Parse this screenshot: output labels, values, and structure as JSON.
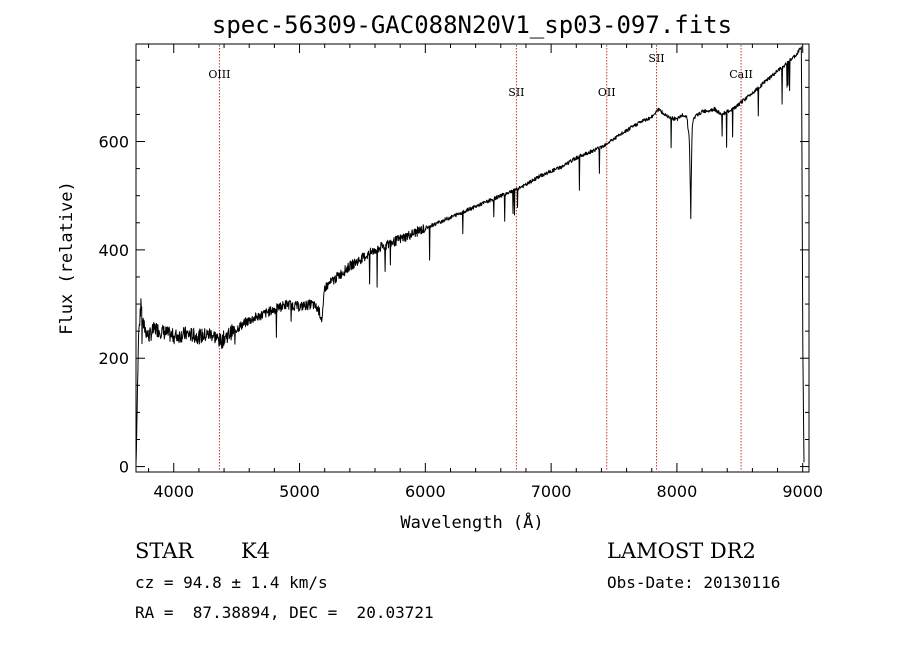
{
  "chart_data": {
    "type": "line",
    "title": "spec-56309-GAC088N20V1_sp03-097.fits",
    "xlabel": "Wavelength (Å)",
    "ylabel": "Flux (relative)",
    "xlim": [
      3700,
      9050
    ],
    "ylim": [
      -10,
      780
    ],
    "x_ticks": [
      4000,
      5000,
      6000,
      7000,
      8000,
      9000
    ],
    "y_ticks": [
      0,
      200,
      400,
      600
    ],
    "x_tick_labels": [
      "4000",
      "5000",
      "6000",
      "7000",
      "8000",
      "9000"
    ],
    "y_tick_labels": [
      "0",
      "200",
      "400",
      "600"
    ],
    "grid": false,
    "series": [
      {
        "x": [
          3700,
          3720,
          3740,
          3760,
          3780,
          3800,
          3850,
          3900,
          3950,
          4000,
          4100,
          4200,
          4300,
          4380,
          4400,
          4500,
          4600,
          4700,
          4800,
          4900,
          5000,
          5100,
          5150,
          5180,
          5200,
          5300,
          5400,
          5500,
          5600,
          5700,
          5800,
          5900,
          6000,
          6100,
          6200,
          6300,
          6400,
          6500,
          6600,
          6700,
          6800,
          6900,
          7000,
          7100,
          7200,
          7300,
          7400,
          7500,
          7600,
          7700,
          7800,
          7850,
          7900,
          8000,
          8050,
          8080,
          8100,
          8110,
          8120,
          8130,
          8140,
          8200,
          8300,
          8350,
          8400,
          8450,
          8500,
          8550,
          8600,
          8700,
          8800,
          8900,
          8950,
          8990,
          9000,
          9010
        ],
        "y": [
          5,
          240,
          300,
          260,
          250,
          240,
          255,
          250,
          245,
          240,
          245,
          240,
          245,
          230,
          238,
          255,
          270,
          280,
          290,
          300,
          295,
          300,
          290,
          270,
          330,
          350,
          370,
          385,
          400,
          410,
          420,
          430,
          440,
          450,
          460,
          470,
          480,
          490,
          500,
          510,
          520,
          535,
          545,
          555,
          570,
          580,
          590,
          605,
          620,
          635,
          645,
          660,
          650,
          640,
          650,
          645,
          600,
          460,
          620,
          640,
          645,
          655,
          660,
          650,
          655,
          660,
          670,
          680,
          690,
          710,
          730,
          750,
          760,
          775,
          250,
          5
        ]
      }
    ],
    "vlines": [
      {
        "x": 4363,
        "label": "OIII"
      },
      {
        "x": 6724,
        "label": "SII"
      },
      {
        "x": 7442,
        "label": "OII"
      },
      {
        "x": 7838,
        "label": "SII"
      },
      {
        "x": 8510,
        "label": "CaII"
      }
    ]
  },
  "info": {
    "object_class": "STAR",
    "subclass": "K4",
    "survey": "LAMOST DR2",
    "cz_line": "cz = 94.8 ± 1.4 km/s",
    "obs_date_line": "Obs-Date: 20130116",
    "radec_line": "RA =  87.38894, DEC =  20.03721"
  },
  "colors": {
    "spectrum": "#000000",
    "marker_line": "#c0392b",
    "axes": "#000000"
  }
}
